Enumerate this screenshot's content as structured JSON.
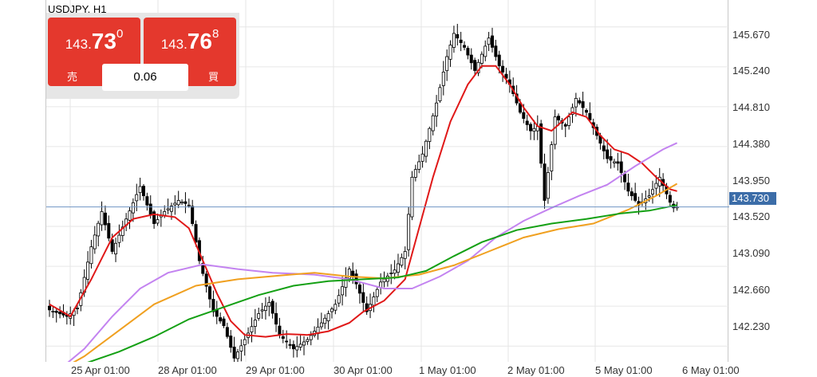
{
  "symbol": "USDJPY, H1",
  "trade_panel": {
    "sell": {
      "big": "143.",
      "digits": "73",
      "pip": "0",
      "label": "売"
    },
    "buy": {
      "big": "143.",
      "digits": "76",
      "pip": "8",
      "label": "買"
    },
    "spread": "0.06"
  },
  "colors": {
    "bull_fill": "#ffffff",
    "bear_fill": "#000000",
    "candle_outline": "#000000",
    "ma_red": "#e01818",
    "ma_purple": "#c383f0",
    "ma_orange": "#f0a020",
    "ma_green": "#14a014",
    "current_price_line": "#6f95c4",
    "accent_red": "#e4382d",
    "tag_blue": "#3c6da8"
  },
  "chart_data": {
    "type": "candlestick",
    "title": "USDJPY, H1",
    "ylim": [
      142.06,
      145.96
    ],
    "y_ticks": [
      "145.670",
      "145.240",
      "144.810",
      "144.380",
      "143.950",
      "143.520",
      "143.090",
      "142.660",
      "142.230"
    ],
    "current_price": "143.730",
    "x_labels": [
      "25 Apr 01:00",
      "28 Apr 01:00",
      "29 Apr 01:00",
      "30 Apr 01:00",
      "1 May 01:00",
      "2 May 01:00",
      "5 May 01:00",
      "6 May 01:00"
    ],
    "grid": true,
    "candles": {
      "anchors": [
        [
          0,
          142.62
        ],
        [
          5,
          142.55
        ],
        [
          8,
          142.64
        ],
        [
          12,
          143.3
        ],
        [
          15,
          143.68
        ],
        [
          18,
          143.25
        ],
        [
          22,
          143.6
        ],
        [
          26,
          143.95
        ],
        [
          30,
          143.55
        ],
        [
          33,
          143.68
        ],
        [
          37,
          143.8
        ],
        [
          40,
          143.75
        ],
        [
          43,
          143.15
        ],
        [
          47,
          142.6
        ],
        [
          50,
          142.45
        ],
        [
          53,
          142.1
        ],
        [
          56,
          142.3
        ],
        [
          60,
          142.58
        ],
        [
          63,
          142.7
        ],
        [
          66,
          142.35
        ],
        [
          70,
          142.2
        ],
        [
          74,
          142.3
        ],
        [
          78,
          142.48
        ],
        [
          82,
          142.68
        ],
        [
          86,
          143.06
        ],
        [
          88,
          142.9
        ],
        [
          91,
          142.6
        ],
        [
          95,
          142.92
        ],
        [
          99,
          143.05
        ],
        [
          102,
          143.25
        ],
        [
          104,
          144.05
        ],
        [
          107,
          144.3
        ],
        [
          111,
          144.85
        ],
        [
          114,
          145.35
        ],
        [
          116,
          145.6
        ],
        [
          119,
          145.45
        ],
        [
          122,
          145.2
        ],
        [
          126,
          145.55
        ],
        [
          129,
          145.25
        ],
        [
          132,
          145.05
        ],
        [
          135,
          144.75
        ],
        [
          138,
          144.55
        ],
        [
          140,
          144.6
        ],
        [
          142,
          143.8
        ],
        [
          145,
          144.7
        ],
        [
          148,
          144.6
        ],
        [
          151,
          144.9
        ],
        [
          154,
          144.75
        ],
        [
          157,
          144.5
        ],
        [
          160,
          144.25
        ],
        [
          163,
          144.2
        ],
        [
          166,
          143.9
        ],
        [
          169,
          143.75
        ],
        [
          172,
          143.85
        ],
        [
          175,
          144.05
        ],
        [
          178,
          143.78
        ],
        [
          179,
          143.72
        ],
        [
          180,
          143.73
        ]
      ]
    },
    "series": [
      {
        "color": "#e01818",
        "points": [
          [
            0,
            142.68
          ],
          [
            6,
            142.55
          ],
          [
            12,
            142.95
          ],
          [
            18,
            143.4
          ],
          [
            24,
            143.6
          ],
          [
            30,
            143.65
          ],
          [
            36,
            143.62
          ],
          [
            40,
            143.5
          ],
          [
            44,
            143.15
          ],
          [
            48,
            142.8
          ],
          [
            52,
            142.5
          ],
          [
            56,
            142.35
          ],
          [
            62,
            142.33
          ],
          [
            68,
            142.36
          ],
          [
            74,
            142.35
          ],
          [
            80,
            142.39
          ],
          [
            86,
            142.48
          ],
          [
            90,
            142.6
          ],
          [
            96,
            142.72
          ],
          [
            102,
            142.95
          ],
          [
            106,
            143.5
          ],
          [
            110,
            144.05
          ],
          [
            115,
            144.65
          ],
          [
            120,
            145.05
          ],
          [
            124,
            145.25
          ],
          [
            128,
            145.25
          ],
          [
            132,
            145.05
          ],
          [
            136,
            144.8
          ],
          [
            140,
            144.6
          ],
          [
            144,
            144.55
          ],
          [
            150,
            144.75
          ],
          [
            154,
            144.7
          ],
          [
            158,
            144.5
          ],
          [
            162,
            144.35
          ],
          [
            166,
            144.3
          ],
          [
            170,
            144.2
          ],
          [
            174,
            144.05
          ],
          [
            178,
            143.92
          ],
          [
            180,
            143.9
          ]
        ]
      },
      {
        "color": "#c383f0",
        "points": [
          [
            2,
            141.95
          ],
          [
            10,
            142.2
          ],
          [
            18,
            142.55
          ],
          [
            26,
            142.85
          ],
          [
            34,
            143.02
          ],
          [
            44,
            143.11
          ],
          [
            54,
            143.06
          ],
          [
            64,
            143.02
          ],
          [
            76,
            143.0
          ],
          [
            86,
            142.95
          ],
          [
            96,
            142.85
          ],
          [
            104,
            142.85
          ],
          [
            112,
            142.98
          ],
          [
            120,
            143.15
          ],
          [
            128,
            143.4
          ],
          [
            136,
            143.58
          ],
          [
            144,
            143.72
          ],
          [
            152,
            143.85
          ],
          [
            160,
            143.97
          ],
          [
            168,
            144.17
          ],
          [
            176,
            144.35
          ],
          [
            180,
            144.42
          ]
        ]
      },
      {
        "color": "#f0a020",
        "points": [
          [
            2,
            141.95
          ],
          [
            10,
            142.12
          ],
          [
            20,
            142.4
          ],
          [
            30,
            142.68
          ],
          [
            42,
            142.88
          ],
          [
            54,
            142.95
          ],
          [
            66,
            142.99
          ],
          [
            76,
            143.02
          ],
          [
            86,
            142.98
          ],
          [
            96,
            142.96
          ],
          [
            106,
            143.0
          ],
          [
            116,
            143.1
          ],
          [
            126,
            143.25
          ],
          [
            136,
            143.4
          ],
          [
            146,
            143.49
          ],
          [
            156,
            143.55
          ],
          [
            166,
            143.7
          ],
          [
            174,
            143.85
          ],
          [
            180,
            143.98
          ]
        ]
      },
      {
        "color": "#14a014",
        "points": [
          [
            2,
            141.97
          ],
          [
            10,
            142.04
          ],
          [
            20,
            142.17
          ],
          [
            30,
            142.33
          ],
          [
            40,
            142.52
          ],
          [
            50,
            142.65
          ],
          [
            60,
            142.78
          ],
          [
            70,
            142.88
          ],
          [
            80,
            142.93
          ],
          [
            90,
            142.95
          ],
          [
            100,
            142.97
          ],
          [
            108,
            143.04
          ],
          [
            116,
            143.2
          ],
          [
            124,
            143.35
          ],
          [
            134,
            143.48
          ],
          [
            144,
            143.55
          ],
          [
            154,
            143.6
          ],
          [
            164,
            143.66
          ],
          [
            172,
            143.69
          ],
          [
            180,
            143.75
          ]
        ]
      }
    ]
  }
}
